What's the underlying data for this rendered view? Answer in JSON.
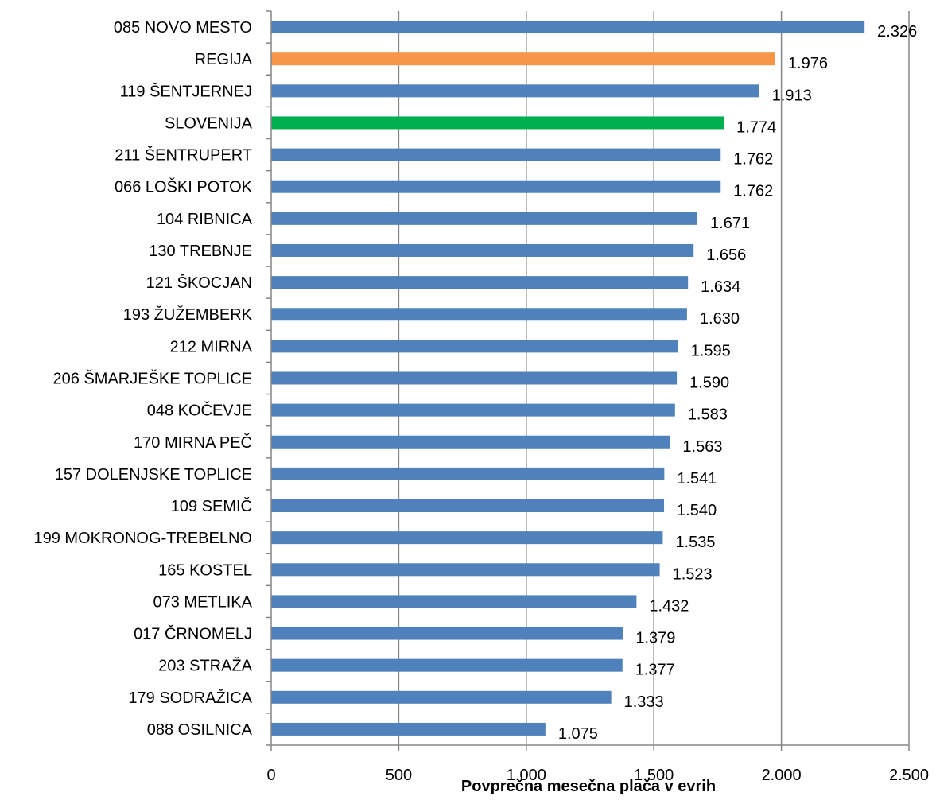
{
  "chart_data": {
    "type": "bar",
    "orientation": "horizontal",
    "categories": [
      "085 NOVO MESTO",
      "REGIJA",
      "119 ŠENTJERNEJ",
      "SLOVENIJA",
      "211 ŠENTRUPERT",
      "066 LOŠKI POTOK",
      "104 RIBNICA",
      "130 TREBNJE",
      "121 ŠKOCJAN",
      "193 ŽUŽEMBERK",
      "212 MIRNA",
      "206 ŠMARJEŠKE TOPLICE",
      "048 KOČEVJE",
      "170 MIRNA PEČ",
      "157 DOLENJSKE TOPLICE",
      "109 SEMIČ",
      "199 MOKRONOG-TREBELNO",
      "165 KOSTEL",
      "073 METLIKA",
      "017 ČRNOMELJ",
      "203 STRAŽA",
      "179 SODRAŽICA",
      "088 OSILNICA"
    ],
    "values": [
      2326,
      1976,
      1913,
      1774,
      1762,
      1762,
      1671,
      1656,
      1634,
      1630,
      1595,
      1590,
      1583,
      1563,
      1541,
      1540,
      1535,
      1523,
      1432,
      1379,
      1377,
      1333,
      1075
    ],
    "value_labels": [
      "2.326",
      "1.976",
      "1.913",
      "1.774",
      "1.762",
      "1.762",
      "1.671",
      "1.656",
      "1.634",
      "1.630",
      "1.595",
      "1.590",
      "1.583",
      "1.563",
      "1.541",
      "1.540",
      "1.535",
      "1.523",
      "1.432",
      "1.379",
      "1.377",
      "1.333",
      "1.075"
    ],
    "bar_colors": {
      "default": "#4F81BD",
      "REGIJA": "#F79646",
      "SLOVENIJA": "#00B050"
    },
    "title": "",
    "xlabel": "Povprečna mesečna plača v evrih",
    "ylabel": "",
    "xlim": [
      0,
      2500
    ],
    "x_ticks": [
      0,
      500,
      1000,
      1500,
      2000,
      2500
    ],
    "x_tick_labels": [
      "0",
      "500",
      "1.000",
      "1.500",
      "2.000",
      "2.500"
    ],
    "grid": "vertical major gridlines",
    "gridline_color": "#868686",
    "legend": "none"
  }
}
